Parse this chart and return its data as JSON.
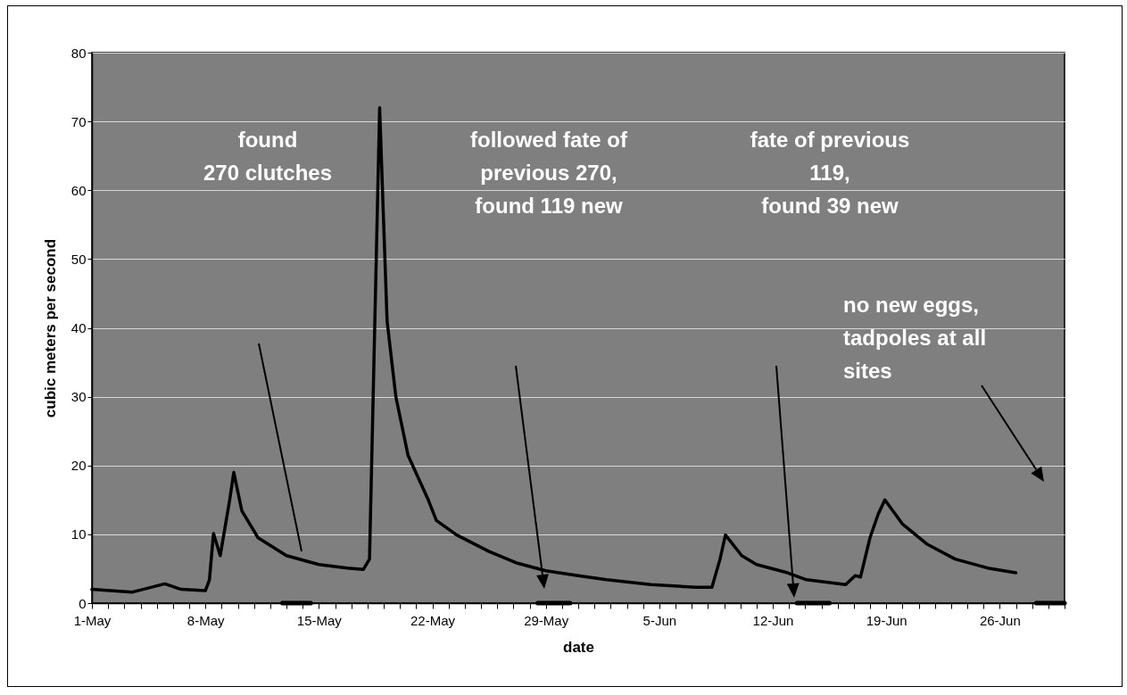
{
  "chart_data": {
    "type": "line",
    "xlabel": "date",
    "ylabel": "cubic meters per second",
    "x": [
      "--05-01T00:00",
      "--05-03T12:00",
      "--05-05T12:00",
      "--05-06T12:00",
      "--05-08T00:00",
      "--05-08T06:00",
      "--05-08T12:00",
      "--05-08T22:00",
      "--05-09T12:00",
      "--05-09T18:00",
      "--05-10T06:00",
      "--05-11T06:00",
      "--05-13T00:00",
      "--05-15T00:00",
      "--05-16T18:00",
      "--05-17T18:00",
      "--05-18T03:00",
      "--05-18T18:00",
      "--05-19T05:00",
      "--05-19T18:00",
      "--05-20T12:00",
      "--05-21T18:00",
      "--05-22T06:00",
      "--05-23T12:00",
      "--05-25T12:00",
      "--05-27T06:00",
      "--05-29T00:00",
      "--05-31T00:00",
      "--06-01T18:00",
      "--06-04T12:00",
      "--06-07T06:00",
      "--06-08T06:00",
      "--06-08T18:00",
      "--06-09T02:00",
      "--06-10T02:00",
      "--06-11T00:00",
      "--06-12T22:00",
      "--06-14T02:00",
      "--06-16T12:00",
      "--06-17T02:00",
      "--06-17T10:00",
      "--06-18T00:00",
      "--06-18T12:00",
      "--06-18T22:00",
      "--06-20T00:00",
      "--06-21T12:00",
      "--06-23T06:00",
      "--06-25T06:00",
      "--06-27T00:00"
    ],
    "series": [
      {
        "color": "#000000",
        "x": [
          "--05-12T18:00",
          "--05-14T12:00"
        ],
        "values": [
          0,
          0
        ]
      },
      {
        "color": "#000000",
        "x": [
          "--05-28T12:00",
          "--05-30T12:00"
        ],
        "values": [
          0,
          0
        ]
      },
      {
        "color": "#000000",
        "x": [
          "--06-13T12:00",
          "--06-15T12:00"
        ],
        "values": [
          0,
          0
        ]
      },
      {
        "color": "#000000",
        "x": [
          "--06-28T06:00",
          "--06-30T00:00"
        ],
        "values": [
          0,
          0
        ]
      },
      {
        "color": "#000000",
        "values": [
          2.0,
          1.6,
          2.8,
          2.0,
          1.8,
          3.4,
          10.1,
          6.9,
          15,
          19,
          13.4,
          9.5,
          6.9,
          5.6,
          5.1,
          4.9,
          6.4,
          72,
          41,
          30,
          21.5,
          15,
          12,
          9.9,
          7.5,
          5.8,
          4.7,
          4.0,
          3.4,
          2.7,
          2.3,
          2.3,
          6.4,
          9.9,
          6.9,
          5.6,
          4.4,
          3.4,
          2.7,
          4.0,
          3.8,
          9.5,
          12.9,
          15,
          11.5,
          8.6,
          6.4,
          5.1,
          4.4
        ]
      }
    ],
    "xlim": [
      "--05-01",
      "--06-30"
    ],
    "xticks": [
      {
        "value": "--05-01",
        "label": "1-May"
      },
      {
        "value": "--05-02",
        "label": null
      },
      {
        "value": "--05-03",
        "label": null
      },
      {
        "value": "--05-04",
        "label": null
      },
      {
        "value": "--05-05",
        "label": null
      },
      {
        "value": "--05-06",
        "label": null
      },
      {
        "value": "--05-07",
        "label": null
      },
      {
        "value": "--05-08",
        "label": "8-May"
      },
      {
        "value": "--05-09",
        "label": null
      },
      {
        "value": "--05-10",
        "label": null
      },
      {
        "value": "--05-11",
        "label": null
      },
      {
        "value": "--05-12",
        "label": null
      },
      {
        "value": "--05-13",
        "label": null
      },
      {
        "value": "--05-14",
        "label": null
      },
      {
        "value": "--05-15",
        "label": "15-May"
      },
      {
        "value": "--05-16",
        "label": null
      },
      {
        "value": "--05-17",
        "label": null
      },
      {
        "value": "--05-18",
        "label": null
      },
      {
        "value": "--05-19",
        "label": null
      },
      {
        "value": "--05-20",
        "label": null
      },
      {
        "value": "--05-21",
        "label": null
      },
      {
        "value": "--05-22",
        "label": "22-May"
      },
      {
        "value": "--05-23",
        "label": null
      },
      {
        "value": "--05-24",
        "label": null
      },
      {
        "value": "--05-25",
        "label": null
      },
      {
        "value": "--05-26",
        "label": null
      },
      {
        "value": "--05-27",
        "label": null
      },
      {
        "value": "--05-28",
        "label": null
      },
      {
        "value": "--05-29",
        "label": "29-May"
      },
      {
        "value": "--05-30",
        "label": null
      },
      {
        "value": "--05-31",
        "label": null
      },
      {
        "value": "--06-01",
        "label": null
      },
      {
        "value": "--06-02",
        "label": null
      },
      {
        "value": "--06-03",
        "label": null
      },
      {
        "value": "--06-04",
        "label": null
      },
      {
        "value": "--06-05",
        "label": "5-Jun"
      },
      {
        "value": "--06-06",
        "label": null
      },
      {
        "value": "--06-07",
        "label": null
      },
      {
        "value": "--06-08",
        "label": null
      },
      {
        "value": "--06-09",
        "label": null
      },
      {
        "value": "--06-10",
        "label": null
      },
      {
        "value": "--06-11",
        "label": null
      },
      {
        "value": "--06-12",
        "label": "12-Jun"
      },
      {
        "value": "--06-13",
        "label": null
      },
      {
        "value": "--06-14",
        "label": null
      },
      {
        "value": "--06-15",
        "label": null
      },
      {
        "value": "--06-16",
        "label": null
      },
      {
        "value": "--06-17",
        "label": null
      },
      {
        "value": "--06-18",
        "label": null
      },
      {
        "value": "--06-19",
        "label": "19-Jun"
      },
      {
        "value": "--06-20",
        "label": null
      },
      {
        "value": "--06-21",
        "label": null
      },
      {
        "value": "--06-22",
        "label": null
      },
      {
        "value": "--06-23",
        "label": null
      },
      {
        "value": "--06-24",
        "label": null
      },
      {
        "value": "--06-25",
        "label": null
      },
      {
        "value": "--06-26",
        "label": "26-Jun"
      },
      {
        "value": "--06-27",
        "label": null
      },
      {
        "value": "--06-28",
        "label": null
      },
      {
        "value": "--06-29",
        "label": null
      },
      {
        "value": "--06-30",
        "label": null
      }
    ],
    "ylim": [
      0,
      80
    ],
    "yticks": [
      0,
      10,
      20,
      30,
      40,
      50,
      60,
      70,
      80
    ],
    "grid": "y",
    "marker": "none",
    "line_style": "solid",
    "annotations": [
      "found\n270 clutches",
      "followed fate of\nprevious 270,\nfound 119 new",
      "fate of previous\n119,\nfound 39 new",
      "no new eggs,\ntadpoles at all\nsites"
    ]
  }
}
